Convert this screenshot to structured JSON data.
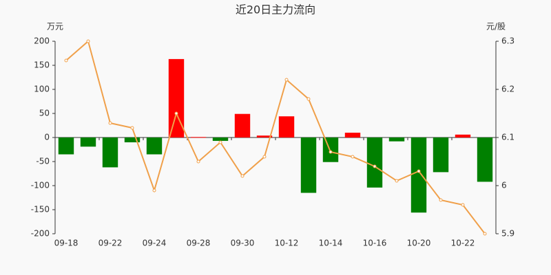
{
  "chart_data": {
    "type": "bar-line",
    "title": "近20日主力流向",
    "y_label": "万元",
    "y2_label": "元/股",
    "categories": [
      "09-18",
      null,
      "09-22",
      null,
      "09-24",
      null,
      "09-28",
      null,
      "09-30",
      null,
      "10-12",
      null,
      "10-14",
      null,
      "10-16",
      null,
      "10-20",
      null,
      "10-22",
      null
    ],
    "series": [
      {
        "type": "bar",
        "positive_color": "#ff0000",
        "negative_color": "#008000",
        "values": [
          -35,
          -19,
          -62,
          -10,
          -35,
          163,
          1,
          -7,
          49,
          4,
          44,
          -115,
          -51,
          10,
          -104,
          -8,
          -156,
          -72,
          6,
          -92
        ]
      },
      {
        "type": "line",
        "axis": "y2",
        "color": "#f0a04a",
        "values": [
          6.26,
          6.3,
          6.13,
          6.12,
          5.99,
          6.15,
          6.05,
          6.09,
          6.02,
          6.06,
          6.22,
          6.18,
          6.07,
          6.06,
          6.04,
          6.01,
          6.03,
          5.97,
          5.96,
          5.9
        ]
      }
    ],
    "ylim": [
      -200,
      200
    ],
    "yticks": [
      -200,
      -150,
      -100,
      -50,
      0,
      50,
      100,
      150,
      200
    ],
    "y2lim": [
      5.9,
      6.3
    ],
    "y2ticks": [
      5.9,
      6,
      6.1,
      6.2,
      6.3
    ]
  }
}
